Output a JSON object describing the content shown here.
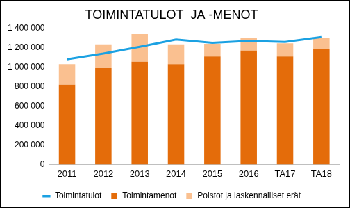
{
  "chart_data": {
    "type": "bar",
    "title": "TOIMINTATULOT  JA -MENOT",
    "categories": [
      "2011",
      "2012",
      "2013",
      "2014",
      "2015",
      "2016",
      "TA17",
      "TA18"
    ],
    "series": [
      {
        "name": "Toimintamenot",
        "type": "bar",
        "color": "#e46c0a",
        "values": [
          820000,
          990000,
          1055000,
          1030000,
          1110000,
          1170000,
          1110000,
          1190000
        ]
      },
      {
        "name": "Poistot ja laskennalliset erät",
        "type": "bar",
        "color": "#fac090",
        "values": [
          210000,
          245000,
          285000,
          205000,
          130000,
          130000,
          135000,
          110000
        ]
      },
      {
        "name": "Toimintatulot",
        "type": "line",
        "color": "#1ba1e2",
        "values": [
          1080000,
          1140000,
          1210000,
          1285000,
          1250000,
          1270000,
          1260000,
          1310000
        ]
      }
    ],
    "stacked": true,
    "ylim": [
      0,
      1400000
    ],
    "yticks": [
      0,
      {
        "value": 200000,
        "label": "200 000"
      },
      {
        "value": 400000,
        "label": "400 000"
      },
      {
        "value": 600000,
        "label": "600 000"
      },
      {
        "value": 800000,
        "label": "800 000"
      },
      {
        "value": 1000000,
        "label": "1 000 000"
      },
      {
        "value": 1200000,
        "label": "1 200 000"
      },
      {
        "value": 1400000,
        "label": "1 400 000"
      }
    ],
    "grid": false,
    "legend": "bottom"
  }
}
